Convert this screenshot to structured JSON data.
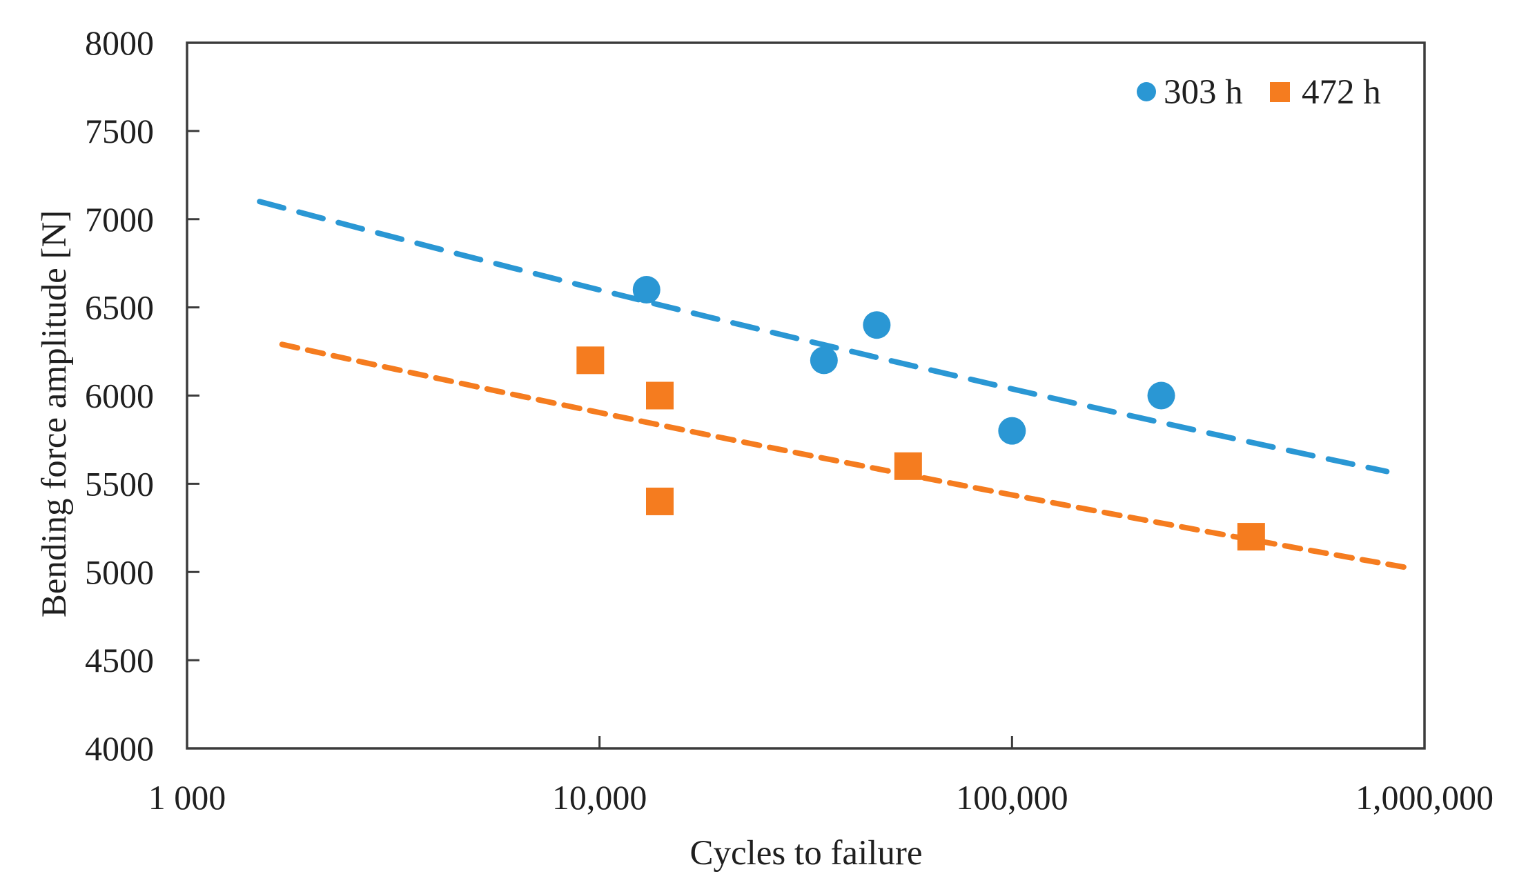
{
  "chart_data": {
    "type": "scatter",
    "title": "",
    "xlabel": "Cycles to failure",
    "ylabel": "Bending force amplitude [N]",
    "x_scale": "log",
    "xlim": [
      1000,
      1000000
    ],
    "ylim": [
      4000,
      8000
    ],
    "grid": false,
    "legend_position": "top-right-inside",
    "axis_color": "#3b3b3b",
    "text_color": "#1f1f1f",
    "y_ticks": [
      {
        "value": 8000,
        "label": "8000"
      },
      {
        "value": 7500,
        "label": "7500"
      },
      {
        "value": 7000,
        "label": "7000"
      },
      {
        "value": 6500,
        "label": "6500"
      },
      {
        "value": 6000,
        "label": "6000"
      },
      {
        "value": 5500,
        "label": "5500"
      },
      {
        "value": 5000,
        "label": "5000"
      },
      {
        "value": 4500,
        "label": "4500"
      },
      {
        "value": 4000,
        "label": "4000"
      }
    ],
    "x_ticks": [
      {
        "value": 1000,
        "label": "1 000"
      },
      {
        "value": 10000,
        "label": "10,000"
      },
      {
        "value": 100000,
        "label": "100,000"
      },
      {
        "value": 1000000,
        "label": "1,000,000"
      }
    ],
    "series": [
      {
        "name": "303 h",
        "marker": "circle",
        "color": "#2a97d4",
        "points": [
          {
            "cycles": 13000,
            "force_n": 6600
          },
          {
            "cycles": 35000,
            "force_n": 6200
          },
          {
            "cycles": 47000,
            "force_n": 6400
          },
          {
            "cycles": 100000,
            "force_n": 5800
          },
          {
            "cycles": 230000,
            "force_n": 6000
          }
        ],
        "trendline": {
          "type": "power",
          "from": {
            "cycles": 1500,
            "force_n": 7100
          },
          "to": {
            "cycles": 810000,
            "force_n": 5570
          },
          "dash": [
            36,
            23
          ]
        }
      },
      {
        "name": "472 h",
        "marker": "square",
        "color": "#f57c1f",
        "points": [
          {
            "cycles": 9500,
            "force_n": 6200
          },
          {
            "cycles": 14000,
            "force_n": 6000
          },
          {
            "cycles": 14000,
            "force_n": 5400
          },
          {
            "cycles": 56000,
            "force_n": 5600
          },
          {
            "cycles": 380000,
            "force_n": 5200
          }
        ],
        "trendline": {
          "type": "power",
          "from": {
            "cycles": 1700,
            "force_n": 6290
          },
          "to": {
            "cycles": 930000,
            "force_n": 5020
          },
          "dash": [
            23,
            15
          ]
        }
      }
    ]
  }
}
